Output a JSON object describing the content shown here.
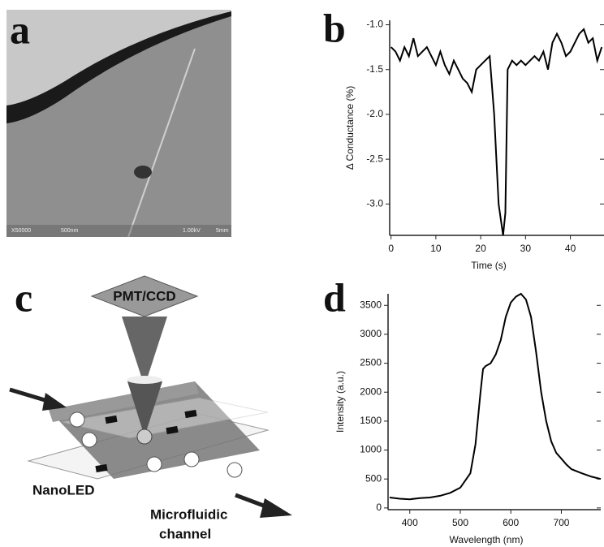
{
  "panel_labels": [
    "a",
    "b",
    "c",
    "d"
  ],
  "sem_image": {
    "labels": [
      "X50000",
      "500nm",
      "1.00kV",
      "5mm"
    ]
  },
  "diagram": {
    "labels": {
      "detector": "PMT/CCD",
      "led": "NanoLED",
      "channel": [
        "Microfluidic",
        "channel"
      ]
    }
  },
  "chart_data": [
    {
      "type": "line",
      "x_label": "Time (s)",
      "y_label": "Δ Conductance (%)",
      "color": "#000000",
      "x": [
        0,
        1,
        2,
        3,
        4,
        5,
        6,
        7,
        8,
        9,
        10,
        11,
        12,
        13,
        14,
        15,
        16,
        17,
        18,
        19,
        20,
        21,
        22,
        23,
        24,
        25,
        25.5,
        26,
        27,
        28,
        29,
        30,
        31,
        32,
        33,
        34,
        35,
        36,
        37,
        38,
        39,
        40,
        41,
        42,
        43,
        44,
        45,
        46,
        47
      ],
      "values": [
        -1.25,
        -1.3,
        -1.4,
        -1.25,
        -1.35,
        -1.15,
        -1.35,
        -1.3,
        -1.25,
        -1.35,
        -1.45,
        -1.3,
        -1.45,
        -1.55,
        -1.4,
        -1.5,
        -1.6,
        -1.65,
        -1.75,
        -1.5,
        -1.45,
        -1.4,
        -1.35,
        -2.0,
        -3.0,
        -3.35,
        -3.1,
        -1.5,
        -1.4,
        -1.45,
        -1.4,
        -1.45,
        -1.4,
        -1.35,
        -1.4,
        -1.3,
        -1.5,
        -1.2,
        -1.1,
        -1.2,
        -1.35,
        -1.3,
        -1.2,
        -1.1,
        -1.05,
        -1.2,
        -1.15,
        -1.4,
        -1.25
      ],
      "xlim": [
        -0.3,
        47.5
      ],
      "ylim": [
        -3.35,
        -0.95
      ],
      "xticks": [
        0,
        10,
        20,
        30,
        40
      ],
      "yticks": [
        {
          "value": -1,
          "label": "-1.0"
        },
        -1.5,
        {
          "value": -2,
          "label": "-2.0"
        },
        -2.5,
        {
          "value": -3,
          "label": "-3.0"
        }
      ]
    },
    {
      "type": "line",
      "x_label": "Wavelength (nm)",
      "y_label": "Intensity (a.u.)",
      "color": "#000000",
      "x": [
        360,
        380,
        400,
        420,
        440,
        460,
        480,
        500,
        520,
        530,
        540,
        545,
        550,
        560,
        570,
        580,
        590,
        600,
        610,
        620,
        630,
        640,
        650,
        660,
        670,
        680,
        690,
        700,
        710,
        720,
        740,
        760,
        778
      ],
      "values": [
        180,
        160,
        150,
        170,
        180,
        210,
        260,
        350,
        600,
        1100,
        2000,
        2400,
        2450,
        2500,
        2650,
        2900,
        3300,
        3550,
        3650,
        3700,
        3600,
        3300,
        2700,
        2000,
        1500,
        1150,
        950,
        850,
        750,
        670,
        600,
        540,
        500
      ],
      "xlim": [
        357,
        778
      ],
      "ylim": [
        -30,
        3700
      ],
      "xticks": [
        400,
        500,
        600,
        700
      ],
      "yticks": [
        0,
        500,
        1000,
        1500,
        2000,
        2500,
        3000,
        3500
      ]
    }
  ]
}
